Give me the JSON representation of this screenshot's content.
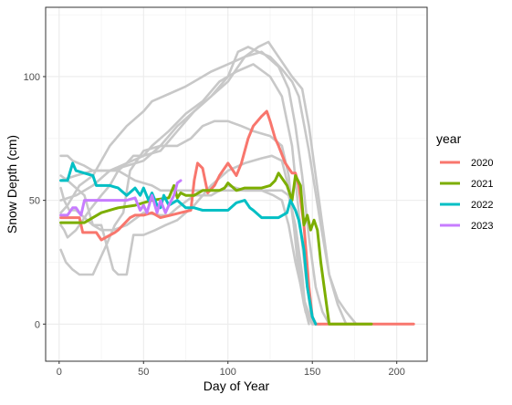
{
  "chart_data": {
    "type": "line",
    "xlabel": "Day of Year",
    "ylabel": "Snow Depth (cm)",
    "xlim": [
      -8,
      218
    ],
    "ylim": [
      -15,
      128
    ],
    "x_ticks": [
      0,
      50,
      100,
      150,
      200
    ],
    "y_ticks": [
      0,
      50,
      100
    ],
    "grid": true,
    "legend": {
      "title": "year",
      "placement": "right",
      "entries": [
        {
          "label": "2020",
          "color": "#F8766D"
        },
        {
          "label": "2021",
          "color": "#7CAE00"
        },
        {
          "label": "2022",
          "color": "#00BFC4"
        },
        {
          "label": "2023",
          "color": "#C77CFF"
        }
      ]
    },
    "background_series_color": "#c8c8c8",
    "background_series": [
      {
        "x": [
          1,
          5,
          8,
          15,
          20,
          25,
          35,
          45,
          55,
          60,
          68,
          75,
          90,
          105,
          115,
          125,
          132,
          136,
          140,
          144,
          146,
          150,
          155
        ],
        "y": [
          68,
          68,
          66,
          64,
          62,
          62,
          62,
          58,
          56,
          54,
          54,
          54,
          54,
          54,
          54,
          54,
          54,
          52,
          40,
          20,
          5,
          0,
          0
        ]
      },
      {
        "x": [
          1,
          5,
          10,
          15,
          20,
          25,
          32,
          40,
          50,
          60,
          65,
          70,
          80,
          90,
          100,
          110,
          120,
          127,
          132,
          136,
          140,
          145,
          150,
          155
        ],
        "y": [
          60,
          58,
          55,
          52,
          40,
          38,
          38,
          40,
          45,
          44,
          44,
          47,
          52,
          52,
          56,
          54,
          54,
          52,
          50,
          40,
          25,
          10,
          0,
          0
        ]
      },
      {
        "x": [
          1,
          3,
          6,
          10,
          15,
          20,
          25,
          32,
          35,
          40,
          44,
          50,
          57,
          63,
          70,
          80,
          90,
          100,
          110,
          120,
          126,
          132,
          136,
          140,
          143,
          146,
          150
        ],
        "y": [
          55,
          50,
          46,
          46,
          43,
          40,
          40,
          22,
          20,
          20,
          36,
          36,
          38,
          40,
          42,
          48,
          56,
          62,
          65,
          67,
          68,
          66,
          55,
          35,
          18,
          5,
          0
        ]
      },
      {
        "x": [
          1,
          4,
          8,
          12,
          20,
          28,
          33,
          38,
          42,
          50,
          60,
          70,
          78,
          85,
          92,
          100,
          108,
          115,
          125,
          132,
          136,
          139,
          142,
          145,
          148
        ],
        "y": [
          30,
          25,
          22,
          20,
          20,
          32,
          40,
          45,
          62,
          70,
          72,
          72,
          75,
          80,
          82,
          82,
          80,
          78,
          76,
          72,
          60,
          40,
          20,
          8,
          0
        ]
      },
      {
        "x": [
          1,
          3,
          5,
          10,
          18,
          25,
          30,
          35,
          40,
          44,
          50,
          55,
          65,
          75,
          85,
          95,
          105,
          115,
          125,
          132,
          138,
          142,
          146,
          150
        ],
        "y": [
          40,
          38,
          35,
          38,
          46,
          52,
          56,
          62,
          65,
          68,
          68,
          72,
          78,
          85,
          90,
          98,
          102,
          105,
          100,
          92,
          72,
          45,
          20,
          0
        ]
      },
      {
        "x": [
          1,
          5,
          12,
          20,
          30,
          40,
          50,
          55,
          65,
          75,
          80,
          90,
          100,
          110,
          120,
          130,
          136,
          140,
          144,
          148,
          152,
          156,
          160
        ],
        "y": [
          45,
          48,
          56,
          60,
          72,
          80,
          86,
          90,
          93,
          96,
          98,
          102,
          105,
          108,
          110,
          104,
          95,
          80,
          60,
          35,
          15,
          5,
          0
        ]
      },
      {
        "x": [
          1,
          10,
          20,
          30,
          40,
          50,
          60,
          70,
          80,
          90,
          100,
          110,
          118,
          124,
          130,
          138,
          144,
          148,
          152,
          156,
          160,
          165,
          170
        ],
        "y": [
          58,
          60,
          62,
          62,
          64,
          66,
          72,
          80,
          86,
          92,
          98,
          108,
          112,
          114,
          108,
          100,
          95,
          80,
          60,
          40,
          20,
          8,
          0
        ]
      },
      {
        "x": [
          1,
          10,
          20,
          30,
          40,
          50,
          60,
          70,
          80,
          90,
          100,
          106,
          112,
          118,
          125,
          132,
          138,
          142,
          148,
          155,
          160,
          165,
          170,
          176
        ],
        "y": [
          50,
          52,
          56,
          62,
          65,
          68,
          70,
          78,
          86,
          92,
          100,
          110,
          112,
          110,
          108,
          103,
          98,
          92,
          70,
          40,
          20,
          10,
          5,
          0
        ]
      }
    ],
    "series": [
      {
        "name": "2020",
        "x": [
          1,
          12,
          14,
          22,
          25,
          33,
          35,
          42,
          45,
          50,
          55,
          60,
          66,
          72,
          78,
          80,
          82,
          85,
          88,
          92,
          95,
          100,
          105,
          108,
          112,
          115,
          120,
          123,
          125,
          128,
          130,
          134,
          138,
          140,
          142,
          145,
          148,
          150,
          152,
          160,
          185,
          210
        ],
        "y": [
          43,
          43,
          37,
          37,
          34,
          37,
          38,
          43,
          44,
          44,
          45,
          43,
          44,
          45,
          46,
          58,
          65,
          63,
          53,
          56,
          60,
          65,
          60,
          65,
          75,
          80,
          84,
          86,
          82,
          75,
          72,
          65,
          61,
          61,
          56,
          40,
          15,
          3,
          0,
          0,
          0,
          0
        ]
      },
      {
        "name": "2021",
        "x": [
          1,
          10,
          15,
          25,
          35,
          45,
          55,
          65,
          68,
          70,
          72,
          75,
          80,
          85,
          90,
          95,
          98,
          100,
          105,
          110,
          115,
          120,
          125,
          128,
          130,
          135,
          138,
          140,
          143,
          145,
          147,
          149,
          151,
          153,
          155,
          158,
          160,
          185
        ],
        "y": [
          41,
          41,
          41,
          45,
          47,
          48,
          50,
          51,
          56,
          51,
          53,
          52,
          52,
          54,
          54,
          54,
          55,
          57,
          54,
          55,
          55,
          55,
          56,
          58,
          61,
          56,
          50,
          60,
          56,
          40,
          44,
          38,
          42,
          38,
          25,
          10,
          0,
          0
        ]
      },
      {
        "name": "2022",
        "x": [
          1,
          5,
          8,
          10,
          15,
          20,
          22,
          30,
          35,
          40,
          45,
          48,
          50,
          53,
          55,
          58,
          60,
          62,
          65,
          70,
          75,
          80,
          85,
          90,
          95,
          100,
          105,
          110,
          113,
          115,
          120,
          122,
          125,
          130,
          135,
          137,
          140,
          142,
          145,
          147,
          150,
          152
        ],
        "y": [
          58,
          58,
          65,
          62,
          61,
          60,
          56,
          56,
          55,
          52,
          55,
          52,
          55,
          50,
          53,
          48,
          47,
          52,
          48,
          50,
          47,
          47,
          46,
          46,
          46,
          46,
          49,
          50,
          47,
          46,
          43,
          43,
          43,
          43,
          45,
          50,
          46,
          42,
          30,
          15,
          3,
          0
        ]
      },
      {
        "name": "2023",
        "x": [
          1,
          5,
          8,
          10,
          13,
          15,
          20,
          25,
          30,
          35,
          40,
          45,
          48,
          50,
          52,
          55,
          58,
          60,
          63,
          65,
          68,
          70,
          72
        ],
        "y": [
          44,
          44,
          47,
          47,
          44,
          50,
          50,
          50,
          50,
          50,
          50,
          51,
          46,
          48,
          45,
          52,
          45,
          50,
          45,
          48,
          52,
          57,
          58
        ]
      }
    ]
  }
}
